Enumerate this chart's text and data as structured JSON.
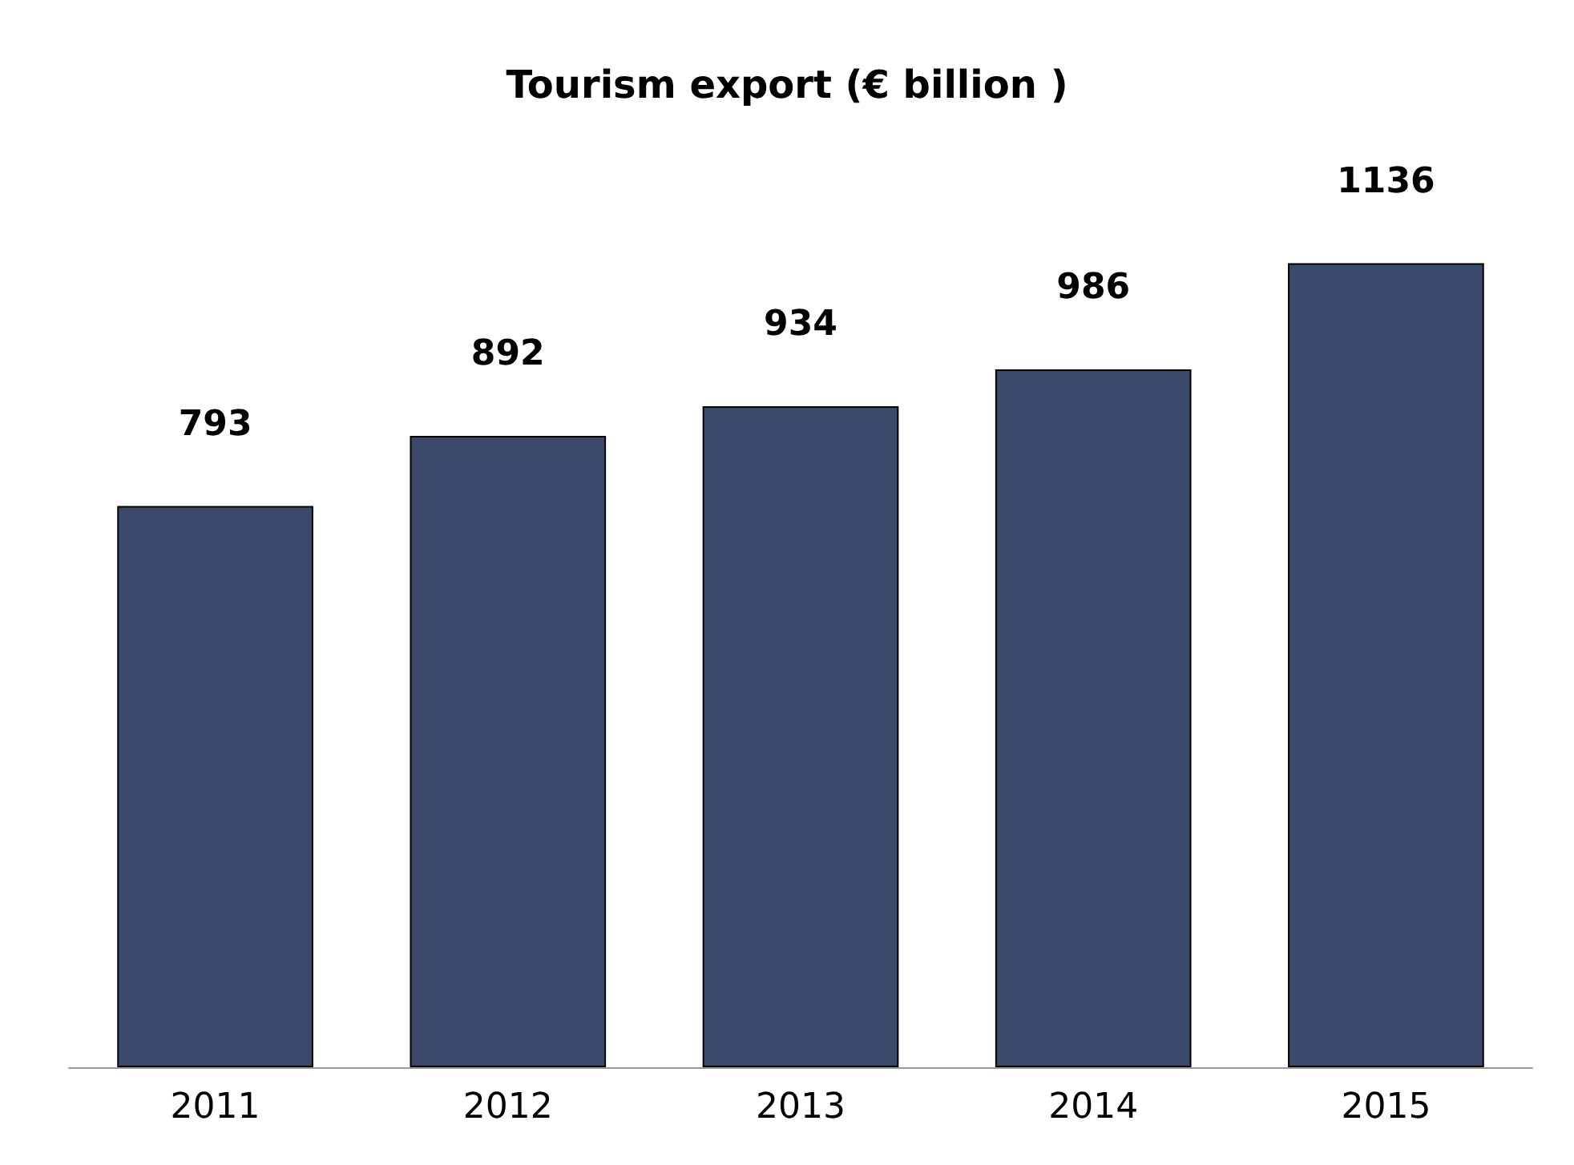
{
  "chart_data": {
    "type": "bar",
    "title": "Tourism export (€ billion )",
    "categories": [
      "2011",
      "2012",
      "2013",
      "2014",
      "2015"
    ],
    "values": [
      793,
      892,
      934,
      986,
      1136
    ],
    "color": "#3b4a6b",
    "data_labels": true
  }
}
